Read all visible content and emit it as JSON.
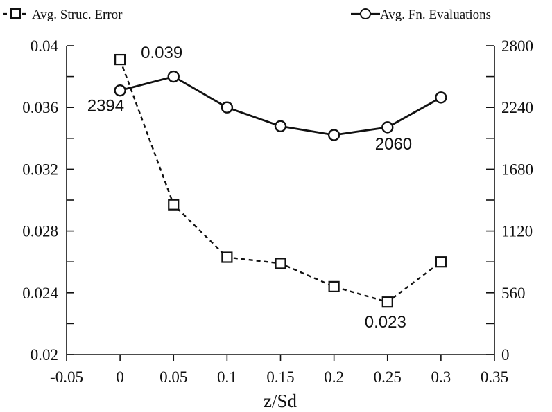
{
  "chart_data": {
    "type": "line",
    "xlabel": "z/Sd",
    "x_ticks": [
      "-0.05",
      "0",
      "0.05",
      "0.1",
      "0.15",
      "0.2",
      "0.25",
      "0.3",
      "0.35"
    ],
    "xlim": [
      -0.05,
      0.35
    ],
    "y_left": {
      "ylim": [
        0.02,
        0.04
      ],
      "tick_labels": [
        "0.02",
        "0.024",
        "0.028",
        "0.032",
        "0.036",
        "0.04"
      ]
    },
    "y_right": {
      "ylim": [
        0,
        2800
      ],
      "tick_labels": [
        "0",
        "560",
        "1120",
        "1680",
        "2240",
        "2800"
      ]
    },
    "legend": {
      "placement": "top"
    },
    "series": [
      {
        "name": "Avg. Struc. Error",
        "axis": "left",
        "style": "dashed",
        "marker": "square",
        "x": [
          0,
          0.05,
          0.1,
          0.15,
          0.2,
          0.25,
          0.3
        ],
        "values": [
          0.0391,
          0.0297,
          0.0263,
          0.0259,
          0.0244,
          0.0234,
          0.026
        ]
      },
      {
        "name": "Avg. Fn. Evaluations",
        "axis": "right",
        "style": "solid",
        "marker": "circle",
        "x": [
          0,
          0.05,
          0.1,
          0.15,
          0.2,
          0.25,
          0.3
        ],
        "values": [
          2394,
          2520,
          2240,
          2070,
          1990,
          2060,
          2330
        ]
      }
    ],
    "annotations": [
      {
        "text": "0.039",
        "series": "Avg. Struc. Error",
        "x": 0
      },
      {
        "text": "2394",
        "series": "Avg. Fn. Evaluations",
        "x": 0
      },
      {
        "text": "2060",
        "series": "Avg. Fn. Evaluations",
        "x": 0.25
      },
      {
        "text": "0.023",
        "series": "Avg. Struc. Error",
        "x": 0.25
      }
    ]
  }
}
